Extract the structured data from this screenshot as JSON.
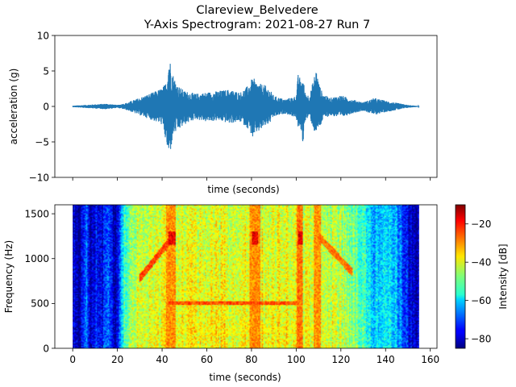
{
  "title_line1": "Clareview_Belvedere",
  "title_line2": "Y-Axis Spectrogram: 2021-08-27 Run 7",
  "chart_data": [
    {
      "type": "line",
      "xlabel": "time (seconds)",
      "ylabel": "acceleration (g)",
      "xlim": [
        -8,
        163
      ],
      "ylim": [
        -10,
        10
      ],
      "yticks": [
        -10,
        -5,
        0,
        5,
        10
      ],
      "xticks": [
        0,
        20,
        40,
        60,
        80,
        100,
        120,
        140,
        160
      ],
      "x_tick_labels_visible": false,
      "color": "#1f77b4",
      "grid": false,
      "envelope": {
        "t": [
          0,
          5,
          10,
          15,
          20,
          24,
          28,
          32,
          36,
          40,
          42,
          43,
          44,
          45,
          47,
          50,
          55,
          60,
          65,
          70,
          75,
          78,
          80,
          81,
          82,
          84,
          86,
          88,
          90,
          95,
          100,
          101,
          102,
          103,
          104,
          106,
          108,
          109,
          110,
          111,
          112,
          115,
          120,
          125,
          130,
          135,
          140,
          145,
          150,
          153,
          155
        ],
        "upper": [
          0.1,
          0.2,
          0.3,
          0.4,
          0.2,
          0.5,
          1.0,
          1.5,
          2.0,
          2.6,
          3.5,
          7.4,
          6.0,
          4.5,
          3.0,
          2.2,
          1.8,
          2.0,
          2.2,
          2.4,
          2.0,
          2.8,
          3.8,
          4.0,
          3.5,
          3.2,
          3.0,
          2.5,
          1.5,
          1.0,
          1.5,
          5.0,
          3.5,
          4.2,
          2.0,
          1.5,
          4.2,
          5.5,
          3.5,
          2.5,
          1.8,
          1.2,
          1.6,
          1.0,
          0.6,
          1.2,
          0.8,
          0.5,
          0.2,
          0.1,
          0.05
        ],
        "lower": [
          -0.1,
          -0.2,
          -0.3,
          -0.4,
          -0.2,
          -0.5,
          -1.0,
          -1.5,
          -2.0,
          -2.6,
          -5.5,
          -7.4,
          -6.0,
          -4.0,
          -3.5,
          -2.6,
          -1.8,
          -2.2,
          -2.0,
          -2.4,
          -2.2,
          -3.0,
          -4.0,
          -5.0,
          -3.8,
          -3.5,
          -2.8,
          -2.5,
          -1.5,
          -1.0,
          -1.6,
          -3.5,
          -3.0,
          -5.5,
          -2.0,
          -1.5,
          -3.5,
          -4.0,
          -3.0,
          -2.8,
          -1.8,
          -1.3,
          -1.6,
          -1.0,
          -0.6,
          -1.2,
          -0.8,
          -0.5,
          -0.2,
          -0.1,
          -0.05
        ]
      }
    },
    {
      "type": "heatmap",
      "xlabel": "time (seconds)",
      "ylabel": "Frequency (Hz)",
      "xlim": [
        -8,
        163
      ],
      "ylim": [
        0,
        1600
      ],
      "xticks": [
        0,
        20,
        40,
        60,
        80,
        100,
        120,
        140,
        160
      ],
      "yticks": [
        0,
        500,
        1000,
        1500
      ],
      "data_time_range": [
        0,
        155
      ],
      "colormap": "jet",
      "colorbar": {
        "label": "Intensity [dB]",
        "range": [
          -85,
          -10
        ],
        "ticks": [
          -80,
          -60,
          -40,
          -20
        ]
      },
      "background_level": {
        "t": [
          0,
          3,
          6,
          8,
          10,
          13,
          16,
          20,
          22,
          25,
          30,
          40,
          60,
          80,
          100,
          110,
          120,
          130,
          135,
          140,
          145,
          150,
          153,
          155
        ],
        "db": [
          -78,
          -80,
          -66,
          -80,
          -72,
          -75,
          -70,
          -80,
          -58,
          -45,
          -40,
          -38,
          -38,
          -37,
          -38,
          -40,
          -42,
          -50,
          -60,
          -55,
          -62,
          -75,
          -80,
          -80
        ]
      },
      "features": [
        {
          "shape": "band",
          "t": [
            43,
            100
          ],
          "f": [
            480,
            530
          ],
          "db": -25
        },
        {
          "shape": "band",
          "t": [
            80,
            83
          ],
          "f": [
            1150,
            1300
          ],
          "db": -18
        },
        {
          "shape": "band",
          "t": [
            101,
            103
          ],
          "f": [
            1150,
            1300
          ],
          "db": -18
        },
        {
          "shape": "band",
          "t": [
            43,
            46
          ],
          "f": [
            1150,
            1300
          ],
          "db": -18
        },
        {
          "shape": "band",
          "t": [
            42,
            46
          ],
          "f": [
            0,
            1600
          ],
          "db": -30
        },
        {
          "shape": "band",
          "t": [
            79,
            84
          ],
          "f": [
            0,
            1600
          ],
          "db": -30
        },
        {
          "shape": "band",
          "t": [
            100,
            103
          ],
          "f": [
            0,
            1600
          ],
          "db": -28
        },
        {
          "shape": "band",
          "t": [
            108,
            111
          ],
          "f": [
            0,
            1600
          ],
          "db": -30
        },
        {
          "shape": "sweep",
          "t": [
            30,
            45
          ],
          "f": [
            780,
            1250
          ],
          "db": -24
        },
        {
          "shape": "sweep",
          "t": [
            110,
            125
          ],
          "f": [
            1250,
            850
          ],
          "db": -28
        },
        {
          "shape": "sweep",
          "t": [
            40,
            110
          ],
          "f": [
            200,
            200
          ],
          "db": -42
        }
      ]
    }
  ]
}
